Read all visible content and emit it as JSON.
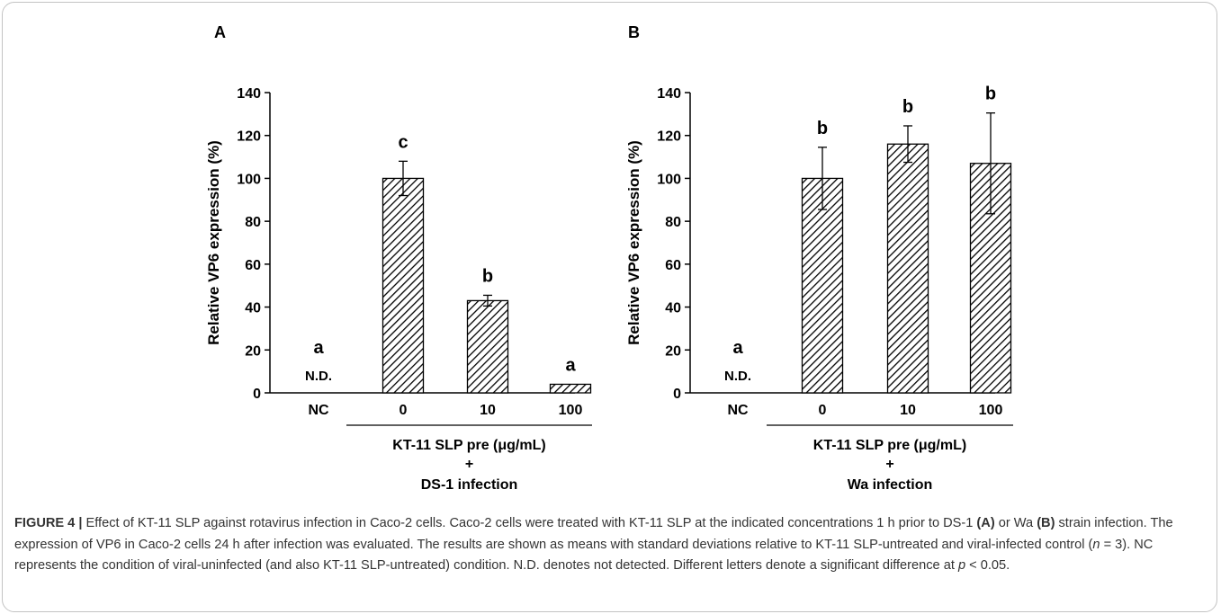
{
  "colors": {
    "bar": "#000000",
    "axis": "#000000",
    "frame": "#c3c3c3",
    "caption": "#333333"
  },
  "chart_data": [
    {
      "type": "bar",
      "panel_label": "A",
      "categories": [
        "NC",
        "0",
        "10",
        "100"
      ],
      "values": [
        0,
        100,
        43,
        4
      ],
      "errors": [
        0,
        8,
        2.5,
        0
      ],
      "significance": [
        "a",
        "c",
        "b",
        "a"
      ],
      "nd_label": "N.D.",
      "ylabel": "Relative VP6 expression (%)",
      "ylim": [
        0,
        140
      ],
      "yticks": [
        0,
        20,
        40,
        60,
        80,
        100,
        120,
        140
      ],
      "group_label": "KT-11 SLP pre (μg/mL)",
      "plus_label": "+",
      "infection_label": "DS-1 infection",
      "bar_pattern": "diagonal-hatch"
    },
    {
      "type": "bar",
      "panel_label": "B",
      "categories": [
        "NC",
        "0",
        "10",
        "100"
      ],
      "values": [
        0,
        100,
        116,
        107
      ],
      "errors": [
        0,
        14.5,
        8.5,
        23.5
      ],
      "significance": [
        "a",
        "b",
        "b",
        "b"
      ],
      "nd_label": "N.D.",
      "ylabel": "Relative VP6 expression (%)",
      "ylim": [
        0,
        140
      ],
      "yticks": [
        0,
        20,
        40,
        60,
        80,
        100,
        120,
        140
      ],
      "group_label": "KT-11 SLP pre (μg/mL)",
      "plus_label": "+",
      "infection_label": "Wa infection",
      "bar_pattern": "diagonal-hatch"
    }
  ],
  "caption": {
    "fig_label": "FIGURE 4 |",
    "t1": " Effect of KT-11 SLP against rotavirus infection in Caco-2 cells. Caco-2 cells were treated with KT-11 SLP at the indicated concentrations 1 h prior to DS-1 ",
    "a_ref": "(A)",
    "t2": " or Wa ",
    "b_ref": "(B)",
    "t3": " strain infection. The expression of VP6 in Caco-2 cells 24 h after infection was evaluated. The results are shown as means with standard deviations relative to KT-11 SLP-untreated and viral-infected control (",
    "n_var": "n",
    "t4": " = 3). NC represents the condition of viral-uninfected (and also KT-11 SLP-untreated) condition. N.D. denotes not detected. Different letters denote a significant difference at ",
    "p_var": "p",
    "t5": " < 0.05."
  }
}
